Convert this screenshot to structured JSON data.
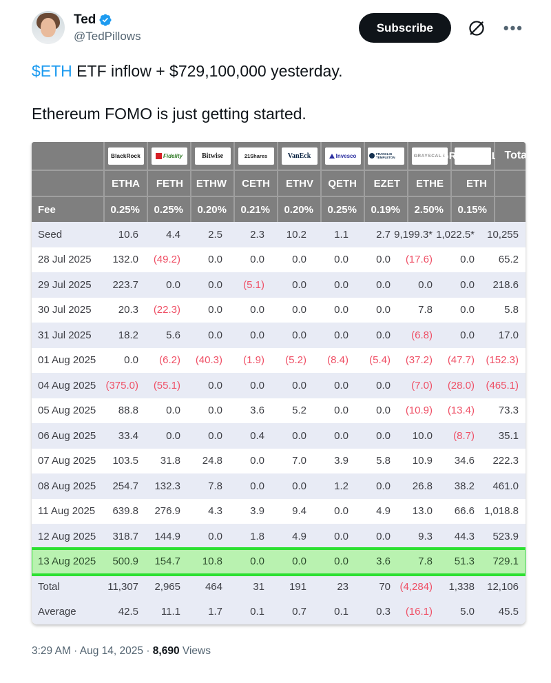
{
  "header": {
    "name": "Ted",
    "handle": "@TedPillows",
    "subscribe_label": "Subscribe",
    "more_label": "...",
    "icons": {
      "verified": "verified-badge",
      "grok": "grok-icon",
      "more": "more-menu-icon"
    }
  },
  "tweet": {
    "cashtag": "$ETH",
    "line1_rest": " ETF inflow + $729,100,000 yesterday.",
    "line2": "Ethereum FOMO is just getting started."
  },
  "table": {
    "providers": [
      {
        "id": "blackrock",
        "label": "BlackRock"
      },
      {
        "id": "fidelity",
        "label": "Fidelity"
      },
      {
        "id": "bitwise",
        "label": "Bitwise"
      },
      {
        "id": "21shares",
        "label": "21Shares"
      },
      {
        "id": "vaneck",
        "label": "VanEck"
      },
      {
        "id": "invesco",
        "label": "Invesco"
      },
      {
        "id": "franklin",
        "label": "FRANKLIN TEMPLETON"
      },
      {
        "id": "grayscale",
        "label": "GRAYSCALE"
      },
      {
        "id": "grayscale2",
        "label": "GRAYSCALE"
      }
    ],
    "total_label": "Total",
    "tickers": [
      "ETHA",
      "FETH",
      "ETHW",
      "CETH",
      "ETHV",
      "QETH",
      "EZET",
      "ETHE",
      "ETH"
    ],
    "fee_label": "Fee",
    "fees": [
      "0.25%",
      "0.25%",
      "0.20%",
      "0.21%",
      "0.20%",
      "0.25%",
      "0.19%",
      "2.50%",
      "0.15%"
    ],
    "rows": [
      {
        "label": "Seed",
        "values": [
          "10.6",
          "4.4",
          "2.5",
          "2.3",
          "10.2",
          "1.1",
          "2.7",
          "9,199.3*",
          "1,022.5*",
          "10,255"
        ]
      },
      {
        "label": "28 Jul 2025",
        "values": [
          "132.0",
          "(49.2)",
          "0.0",
          "0.0",
          "0.0",
          "0.0",
          "0.0",
          "(17.6)",
          "0.0",
          "65.2"
        ]
      },
      {
        "label": "29 Jul 2025",
        "values": [
          "223.7",
          "0.0",
          "0.0",
          "(5.1)",
          "0.0",
          "0.0",
          "0.0",
          "0.0",
          "0.0",
          "218.6"
        ]
      },
      {
        "label": "30 Jul 2025",
        "values": [
          "20.3",
          "(22.3)",
          "0.0",
          "0.0",
          "0.0",
          "0.0",
          "0.0",
          "7.8",
          "0.0",
          "5.8"
        ]
      },
      {
        "label": "31 Jul 2025",
        "values": [
          "18.2",
          "5.6",
          "0.0",
          "0.0",
          "0.0",
          "0.0",
          "0.0",
          "(6.8)",
          "0.0",
          "17.0"
        ]
      },
      {
        "label": "01 Aug 2025",
        "values": [
          "0.0",
          "(6.2)",
          "(40.3)",
          "(1.9)",
          "(5.2)",
          "(8.4)",
          "(5.4)",
          "(37.2)",
          "(47.7)",
          "(152.3)"
        ]
      },
      {
        "label": "04 Aug 2025",
        "values": [
          "(375.0)",
          "(55.1)",
          "0.0",
          "0.0",
          "0.0",
          "0.0",
          "0.0",
          "(7.0)",
          "(28.0)",
          "(465.1)"
        ]
      },
      {
        "label": "05 Aug 2025",
        "values": [
          "88.8",
          "0.0",
          "0.0",
          "3.6",
          "5.2",
          "0.0",
          "0.0",
          "(10.9)",
          "(13.4)",
          "73.3"
        ]
      },
      {
        "label": "06 Aug 2025",
        "values": [
          "33.4",
          "0.0",
          "0.0",
          "0.4",
          "0.0",
          "0.0",
          "0.0",
          "10.0",
          "(8.7)",
          "35.1"
        ]
      },
      {
        "label": "07 Aug 2025",
        "values": [
          "103.5",
          "31.8",
          "24.8",
          "0.0",
          "7.0",
          "3.9",
          "5.8",
          "10.9",
          "34.6",
          "222.3"
        ]
      },
      {
        "label": "08 Aug 2025",
        "values": [
          "254.7",
          "132.3",
          "7.8",
          "0.0",
          "0.0",
          "1.2",
          "0.0",
          "26.8",
          "38.2",
          "461.0"
        ]
      },
      {
        "label": "11 Aug 2025",
        "values": [
          "639.8",
          "276.9",
          "4.3",
          "3.9",
          "9.4",
          "0.0",
          "4.9",
          "13.0",
          "66.6",
          "1,018.8"
        ]
      },
      {
        "label": "12 Aug 2025",
        "values": [
          "318.7",
          "144.9",
          "0.0",
          "1.8",
          "4.9",
          "0.0",
          "0.0",
          "9.3",
          "44.3",
          "523.9"
        ]
      },
      {
        "label": "13 Aug 2025",
        "highlight": true,
        "values": [
          "500.9",
          "154.7",
          "10.8",
          "0.0",
          "0.0",
          "0.0",
          "3.6",
          "7.8",
          "51.3",
          "729.1"
        ]
      }
    ],
    "summary_rows": [
      {
        "label": "Total",
        "values": [
          "11,307",
          "2,965",
          "464",
          "31",
          "191",
          "23",
          "70",
          "(4,284)",
          "1,338",
          "12,106"
        ]
      },
      {
        "label": "Average",
        "values": [
          "42.5",
          "11.1",
          "1.7",
          "0.1",
          "0.7",
          "0.1",
          "0.3",
          "(16.1)",
          "5.0",
          "45.5"
        ]
      }
    ]
  },
  "footer": {
    "meta_text": "3:29 AM · Aug 14, 2025 · ",
    "views_count": "8,690",
    "views_label": " Views"
  },
  "colors": {
    "cashtag_blue": "#1d9bf0",
    "header_gray": "#7f7f7f",
    "stripe_lavender": "#e8ebf5",
    "negative_red": "#ef5066",
    "highlight_fill": "#b9f2b0",
    "highlight_border": "#2ce031",
    "subscribe_black": "#0f1419"
  }
}
